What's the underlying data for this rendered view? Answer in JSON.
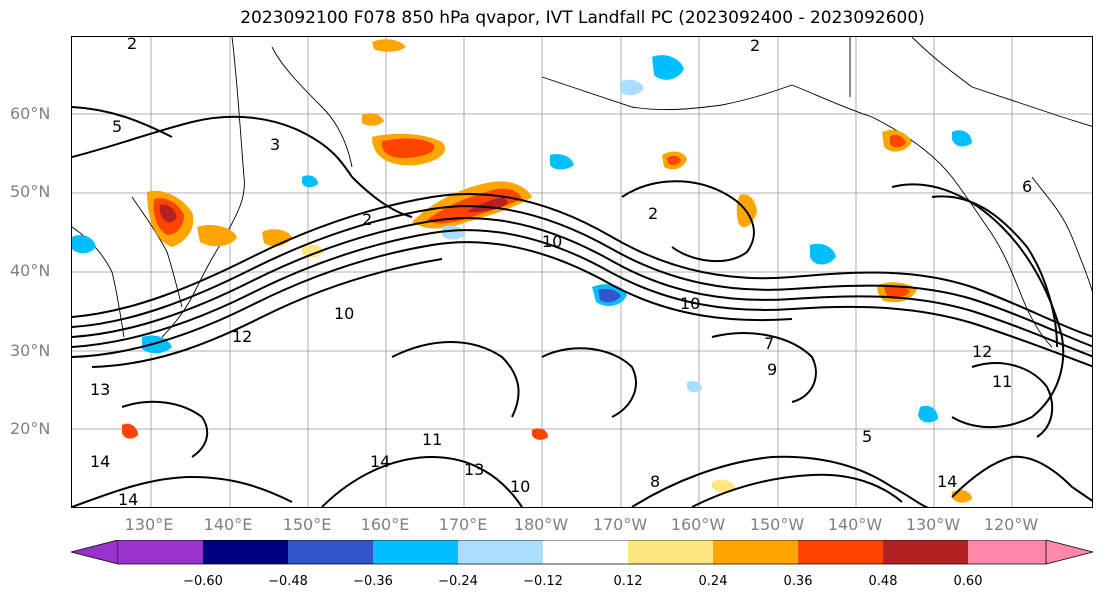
{
  "title": "2023092100 F078 850 hPa qvapor, IVT Landfall PC (2023092400 - 2023092600)",
  "lat_labels": [
    "60°N",
    "50°N",
    "40°N",
    "30°N",
    "20°N"
  ],
  "lon_labels": [
    "130°E",
    "140°E",
    "150°E",
    "160°E",
    "170°E",
    "180°W",
    "170°W",
    "160°W",
    "150°W",
    "140°W",
    "130°W",
    "120°W"
  ],
  "contour_labels": [
    "2",
    "2",
    "5",
    "3",
    "2",
    "2",
    "10",
    "10",
    "10",
    "12",
    "13",
    "14",
    "14",
    "14",
    "13",
    "10",
    "8",
    "6",
    "12",
    "11",
    "9",
    "7",
    "5",
    "11",
    "14"
  ],
  "colorbar": {
    "ticks": [
      "−0.60",
      "−0.48",
      "−0.36",
      "−0.24",
      "−0.12",
      "0.12",
      "0.24",
      "0.36",
      "0.48",
      "0.60"
    ],
    "colors": [
      "#9933cc",
      "#000080",
      "#3355cc",
      "#00bfff",
      "#aaddff",
      "#ffffff",
      "#ffe680",
      "#ffa500",
      "#ff4400",
      "#b22222",
      "#ff88aa"
    ]
  },
  "colors": {
    "positive_accent": "#ff6600",
    "negative_accent": "#00aaff",
    "grid": "#999999"
  }
}
